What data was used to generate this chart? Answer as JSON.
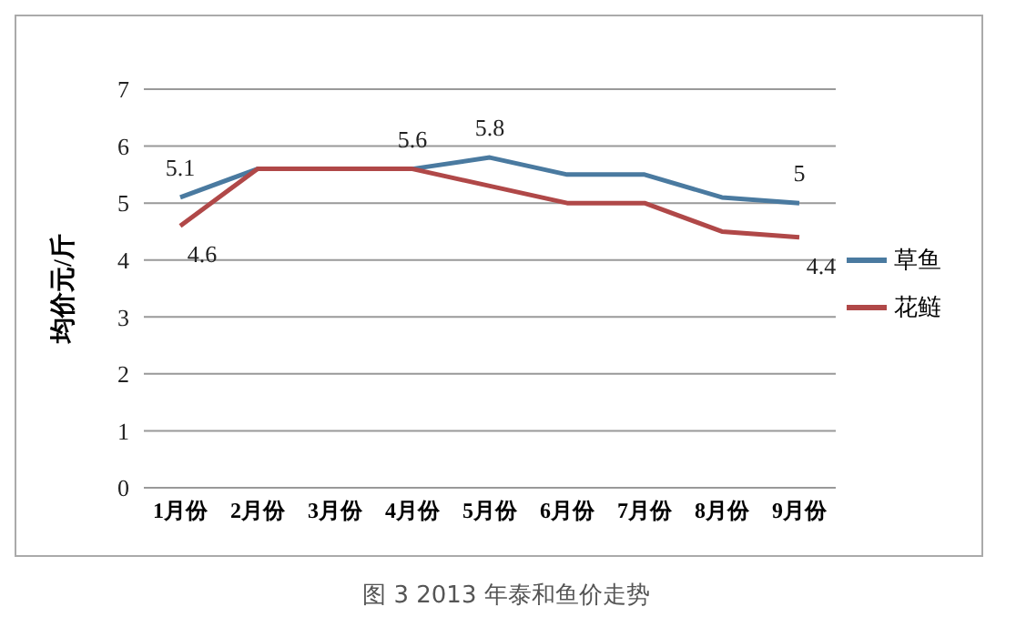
{
  "chart_data": {
    "type": "line",
    "categories": [
      "1月份",
      "2月份",
      "3月份",
      "4月份",
      "5月份",
      "6月份",
      "7月份",
      "8月份",
      "9月份"
    ],
    "series": [
      {
        "name": "草鱼",
        "color": "#4a7aa0",
        "values": [
          5.1,
          5.6,
          5.6,
          5.6,
          5.8,
          5.5,
          5.5,
          5.1,
          5.0
        ],
        "value_labels": [
          "5.1",
          null,
          null,
          "5.6",
          "5.8",
          null,
          null,
          null,
          "5"
        ]
      },
      {
        "name": "花鲢",
        "color": "#b04848",
        "values": [
          4.6,
          5.6,
          5.6,
          5.6,
          5.3,
          5.0,
          5.0,
          4.5,
          4.4
        ],
        "value_labels": [
          "4.6",
          null,
          null,
          null,
          null,
          null,
          null,
          null,
          "4.4"
        ]
      }
    ],
    "ylabel": "均价元/斤",
    "ylim": [
      0,
      7
    ],
    "yticks": [
      0,
      1,
      2,
      3,
      4,
      5,
      6,
      7
    ],
    "grid": "y",
    "legend": "right",
    "marker": "none",
    "line_style": "solid",
    "annotations": [
      "图 3 2013 年泰和鱼价走势"
    ]
  }
}
